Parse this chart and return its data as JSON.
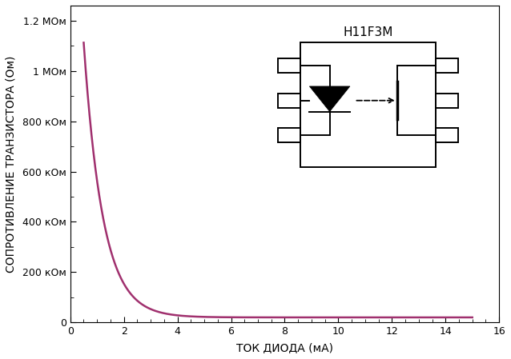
{
  "title": "H11F3M",
  "xlabel": "ТОК ДИОДА (мА)",
  "ylabel": "СОПРОТИВЛЕНИЕ ТРАНЗИСТОРА (Ом)",
  "curve_color": "#a0306e",
  "line_width": 1.8,
  "ylim": [
    0,
    1260000
  ],
  "xlim": [
    0,
    16
  ],
  "yticks": [
    0,
    200000,
    400000,
    600000,
    800000,
    1000000,
    1200000
  ],
  "ytick_labels": [
    "0",
    "200 кОм",
    "400 кОм",
    "600 кОм",
    "800 кОм",
    "1 МОм",
    "1.2 МОм"
  ],
  "xticks": [
    0,
    2,
    4,
    6,
    8,
    10,
    12,
    14,
    16
  ],
  "background_color": "#ffffff",
  "figsize": [
    6.38,
    4.49
  ],
  "dpi": 100
}
